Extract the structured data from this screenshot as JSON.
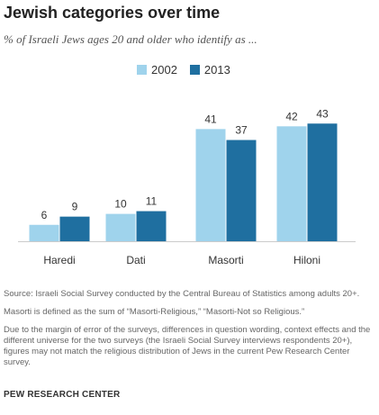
{
  "title": "Jewish categories over time",
  "subtitle": "% of Israeli Jews ages 20 and older who identify as ...",
  "colors": {
    "2002": "#9fd3ec",
    "2013": "#1f6fa0"
  },
  "chart_data": {
    "type": "bar",
    "categories": [
      "Haredi",
      "Dati",
      "Masorti",
      "Hiloni"
    ],
    "series": [
      {
        "name": "2002",
        "values": [
          6,
          10,
          41,
          42
        ]
      },
      {
        "name": "2013",
        "values": [
          9,
          11,
          37,
          43
        ]
      }
    ],
    "ylim": [
      0,
      50
    ],
    "grid": false,
    "legend": "top-center"
  },
  "notes": [
    "Source: Israeli Social Survey conducted by the Central Bureau of Statistics among adults 20+.",
    "Masorti is defined as the sum of “Masorti-Religious,” “Masorti-Not so Religious.”",
    "Due to the margin of error of the surveys, differences in question wording, context effects and the different universe for the two surveys (the Israeli Social Survey interviews respondents 20+), figures may not match the religious distribution of Jews in the current Pew Research Center survey."
  ],
  "footer": "PEW RESEARCH CENTER"
}
